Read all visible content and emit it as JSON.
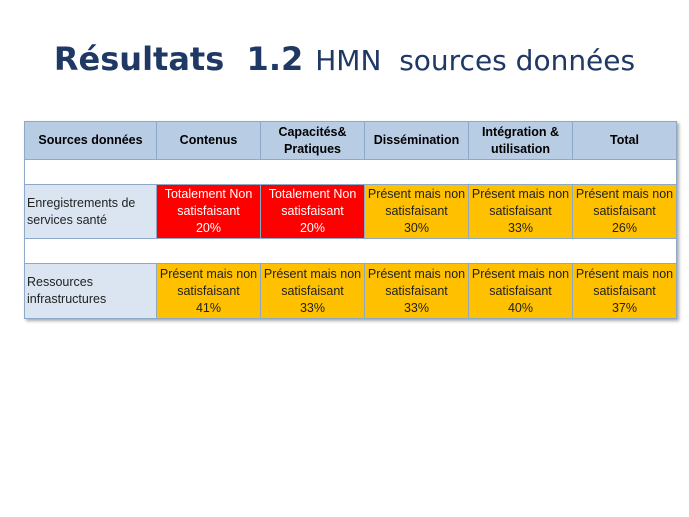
{
  "slide": {
    "title_main": "Résultats  1.2",
    "title_sub": "HMN  sources données"
  },
  "table": {
    "headers": [
      "Sources données",
      "Contenus",
      "Capacités& Pratiques",
      "Dissémination",
      "Intégration & utilisation",
      "Total"
    ],
    "rows": [
      {
        "label": "Enregistrements de services santé",
        "cells": [
          {
            "status": "Totalement Non satisfaisant",
            "value": "20%",
            "color": "#ff0000"
          },
          {
            "status": "Totalement Non satisfaisant",
            "value": "20%",
            "color": "#ff0000"
          },
          {
            "status": "Présent mais non satisfaisant",
            "value": "30%",
            "color": "#ffc000"
          },
          {
            "status": "Présent mais non satisfaisant",
            "value": "33%",
            "color": "#ffc000"
          },
          {
            "status": "Présent mais non satisfaisant",
            "value": "26%",
            "color": "#ffc000"
          }
        ]
      },
      {
        "label": "Ressources infrastructures",
        "cells": [
          {
            "status": "Présent mais non satisfaisant",
            "value": "41%",
            "color": "#ffc000"
          },
          {
            "status": "Présent mais non satisfaisant",
            "value": "33%",
            "color": "#ffc000"
          },
          {
            "status": "Présent mais non satisfaisant",
            "value": "33%",
            "color": "#ffc000"
          },
          {
            "status": "Présent mais non satisfaisant",
            "value": "40%",
            "color": "#ffc000"
          },
          {
            "status": "Présent mais non satisfaisant",
            "value": "37%",
            "color": "#ffc000"
          }
        ]
      }
    ]
  }
}
